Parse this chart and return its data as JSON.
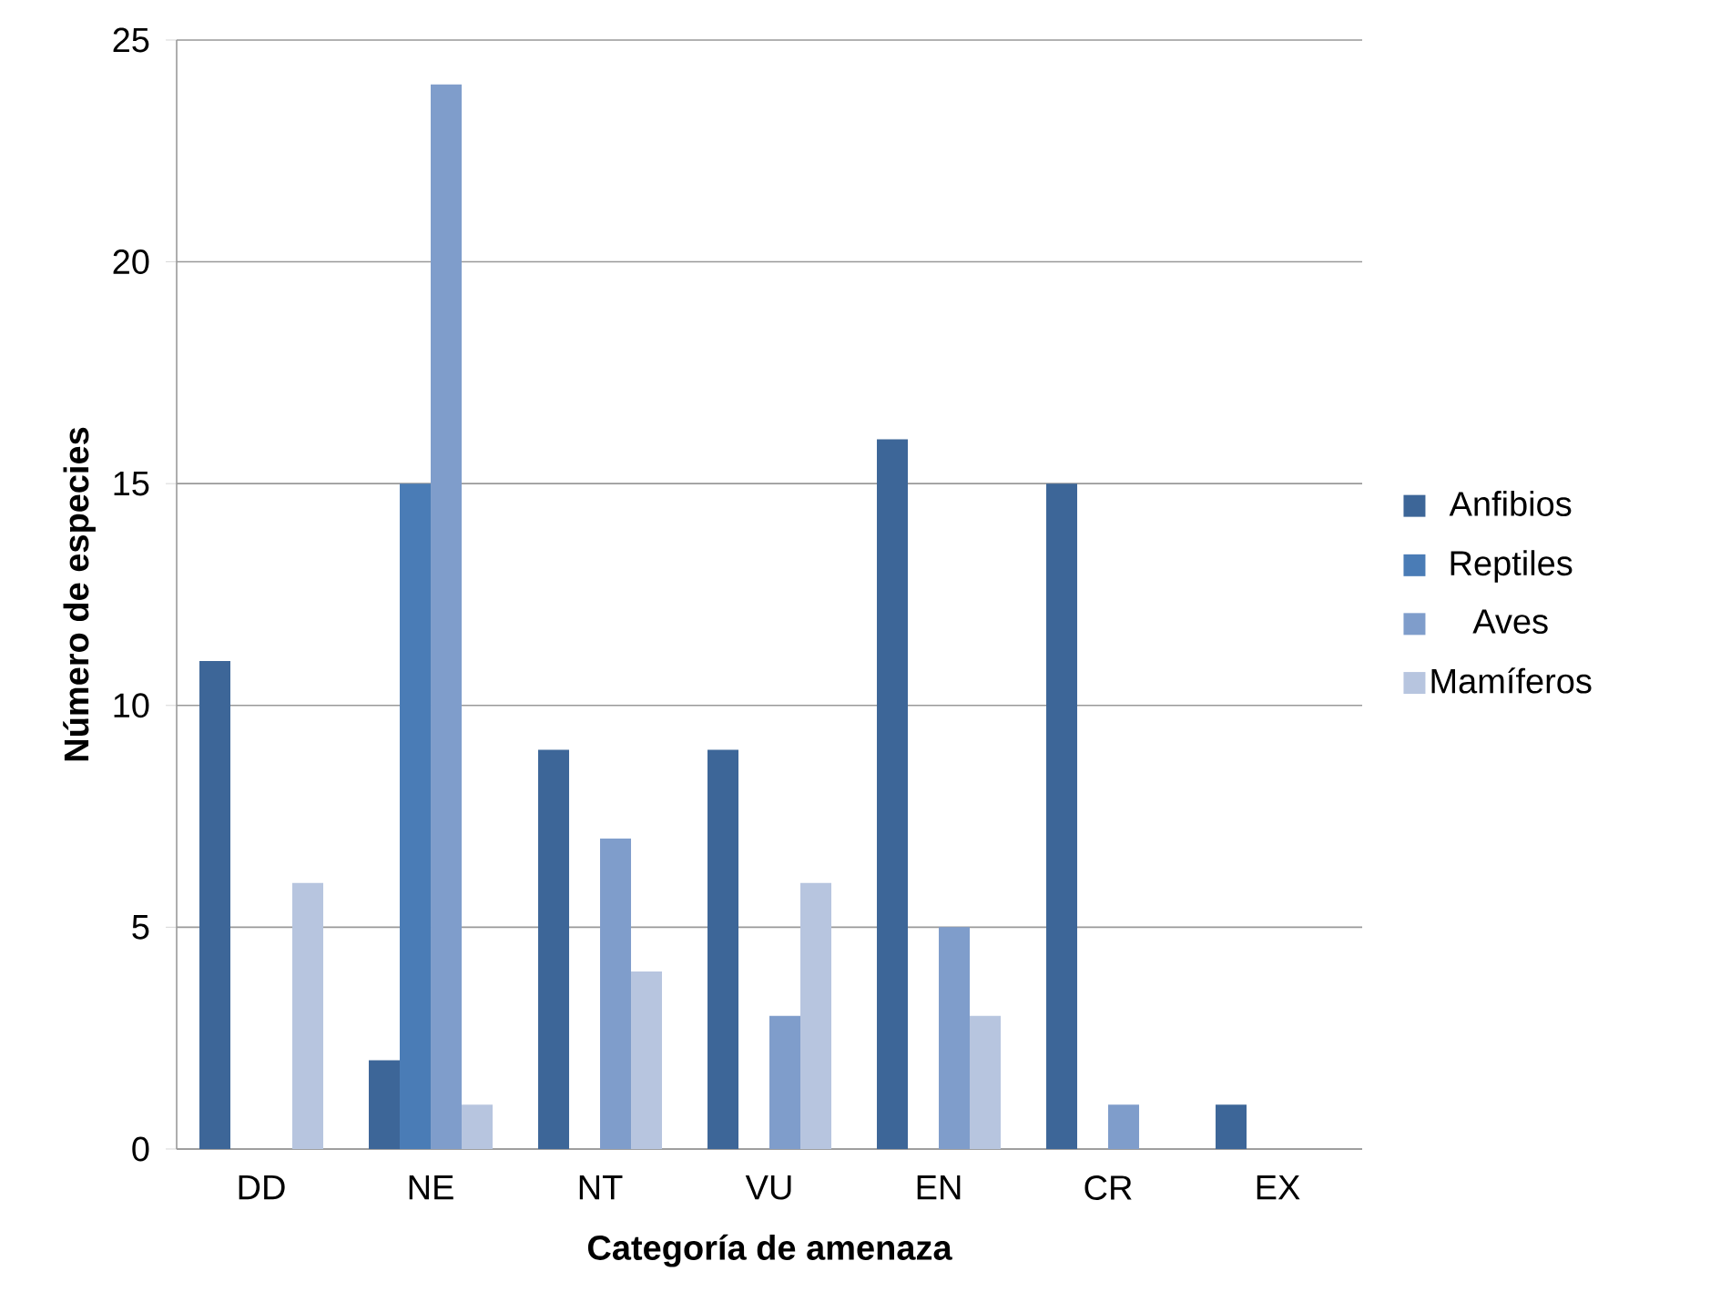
{
  "chart_data": {
    "type": "bar",
    "xlabel": "Categoría de amenaza",
    "ylabel": "Número de especies",
    "categories": [
      "DD",
      "NE",
      "NT",
      "VU",
      "EN",
      "CR",
      "EX"
    ],
    "series": [
      {
        "name": "Anfibios",
        "color": "#3d6698",
        "values": [
          11,
          2,
          9,
          9,
          16,
          15,
          1
        ]
      },
      {
        "name": "Reptiles",
        "color": "#4a7cb6",
        "values": [
          0,
          15,
          0,
          0,
          0,
          0,
          0
        ]
      },
      {
        "name": "Aves",
        "color": "#7f9dcb",
        "values": [
          0,
          24,
          7,
          3,
          5,
          1,
          0
        ]
      },
      {
        "name": "Mamíferos",
        "color": "#b7c5df",
        "values": [
          6,
          1,
          4,
          6,
          3,
          0,
          0
        ]
      }
    ],
    "ylim": [
      0,
      25
    ],
    "yticks": [
      0,
      5,
      10,
      15,
      20,
      25
    ],
    "grid": "y",
    "legend": "right"
  }
}
